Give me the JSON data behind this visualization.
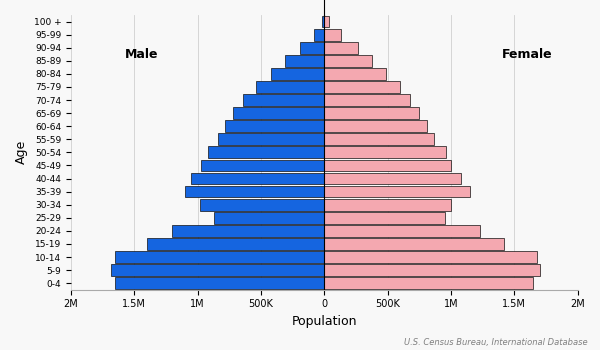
{
  "age_groups": [
    "0-4",
    "5-9",
    "10-14",
    "15-19",
    "20-24",
    "25-29",
    "30-34",
    "35-39",
    "40-44",
    "45-49",
    "50-54",
    "55-59",
    "60-64",
    "65-69",
    "70-74",
    "75-79",
    "80-84",
    "85-89",
    "90-94",
    "95-99",
    "100 +"
  ],
  "male": [
    1650000,
    1680000,
    1650000,
    1400000,
    1200000,
    870000,
    980000,
    1100000,
    1050000,
    970000,
    920000,
    840000,
    780000,
    720000,
    640000,
    540000,
    420000,
    310000,
    190000,
    80000,
    18000
  ],
  "female": [
    1650000,
    1700000,
    1680000,
    1420000,
    1230000,
    950000,
    1000000,
    1150000,
    1080000,
    1000000,
    960000,
    870000,
    810000,
    750000,
    680000,
    600000,
    490000,
    380000,
    270000,
    130000,
    35000
  ],
  "male_color": "#1565e0",
  "female_color": "#f4a8b0",
  "bar_edge_color": "#111111",
  "bar_linewidth": 0.5,
  "background_color": "#f8f8f8",
  "xlabel": "Population",
  "ylabel": "Age",
  "male_label": "Male",
  "female_label": "Female",
  "source_text": "U.S. Census Bureau, International Database",
  "xlim": 2000000,
  "grid_color": "#d0d0d0"
}
